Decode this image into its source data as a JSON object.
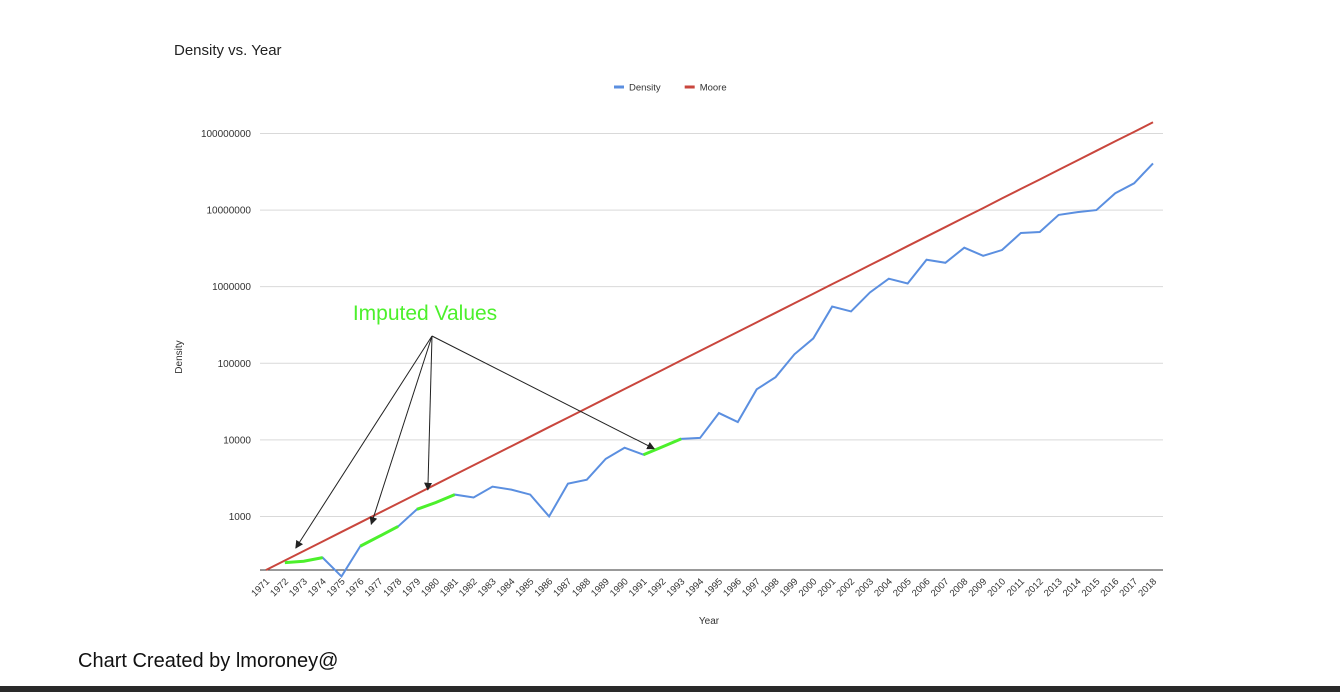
{
  "chart_data": {
    "type": "line",
    "title": "Density vs. Year",
    "x_label": "Year",
    "y_label": "Density",
    "x": [
      1971,
      1972,
      1973,
      1974,
      1975,
      1976,
      1977,
      1978,
      1979,
      1980,
      1981,
      1982,
      1983,
      1984,
      1985,
      1986,
      1987,
      1988,
      1989,
      1990,
      1991,
      1992,
      1993,
      1994,
      1995,
      1996,
      1997,
      1998,
      1999,
      2000,
      2001,
      2002,
      2003,
      2004,
      2005,
      2006,
      2007,
      2008,
      2009,
      2010,
      2011,
      2012,
      2013,
      2014,
      2015,
      2016,
      2017,
      2018
    ],
    "xlim": [
      1971,
      2018
    ],
    "ylim": [
      200,
      150000000
    ],
    "yticks": [
      1000,
      10000,
      100000,
      1000000,
      10000000,
      100000000
    ],
    "log_scale": true,
    "grid": true,
    "legend": "top",
    "series": [
      {
        "name": "Density",
        "color": "#5b8fe0",
        "values": [
          null,
          250,
          260,
          290,
          165,
          410,
          550,
          740,
          1240,
          1520,
          1930,
          1770,
          2450,
          2240,
          1930,
          1000,
          2680,
          3020,
          5650,
          7900,
          6400,
          8100,
          10300,
          10600,
          22400,
          17100,
          45700,
          65800,
          131000,
          211000,
          550000,
          475000,
          840000,
          1270000,
          1100000,
          2250000,
          2050000,
          3230000,
          2530000,
          3010000,
          5030000,
          5180000,
          8650000,
          9400000,
          10000000,
          16600000,
          22400000,
          40700000
        ]
      },
      {
        "name": "Moore",
        "color": "#c9463d",
        "values": [
          200,
          266,
          354,
          471,
          628,
          836,
          1113,
          1483,
          1973,
          2630,
          3500,
          4660,
          6210,
          8260,
          11000,
          14700,
          19500,
          26000,
          34600,
          46100,
          61400,
          81700,
          109000,
          145000,
          193000,
          257000,
          342000,
          456000,
          607000,
          809000,
          1080000,
          1430000,
          1910000,
          2540000,
          3390000,
          4510000,
          6000000,
          8000000,
          10600000,
          14200000,
          18900000,
          25100000,
          33500000,
          44600000,
          59400000,
          79100000,
          105000000,
          140000000
        ]
      }
    ],
    "annotation": {
      "text": "Imputed Values",
      "color": "#4cf02c",
      "ranges": [
        [
          1972,
          1974
        ],
        [
          1976,
          1978
        ],
        [
          1979,
          1981
        ],
        [
          1991,
          1993
        ]
      ]
    }
  },
  "footer": "Chart Created by lmoroney@"
}
